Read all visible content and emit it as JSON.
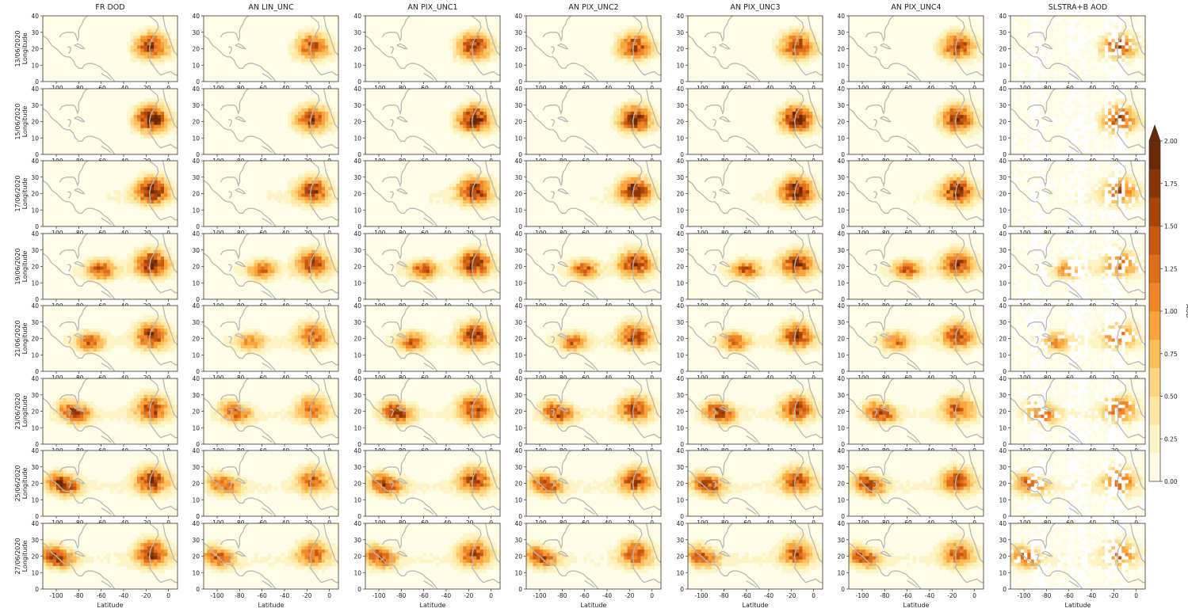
{
  "chart_data": {
    "type": "heatmap",
    "title": "",
    "columns": [
      "FR DOD",
      "AN LIN_UNC",
      "AN PIX_UNC1",
      "AN PIX_UNC2",
      "AN PIX_UNC3",
      "AN PIX_UNC4",
      "SLSTRA+B AOD"
    ],
    "rows": [
      "13/06/2020",
      "15/06/2020",
      "17/06/2020",
      "19/06/2020",
      "21/06/2020",
      "23/06/2020",
      "25/06/2020",
      "27/06/2020"
    ],
    "xlabel": "Latitude",
    "ylabel": "Longitude",
    "xlim": [
      -112,
      8
    ],
    "ylim": [
      0,
      40
    ],
    "x_ticks": [
      -100,
      -80,
      -60,
      -40,
      -20,
      0
    ],
    "y_ticks": [
      0,
      10,
      20,
      30,
      40
    ],
    "grid": false,
    "colorbar": {
      "label": "AOD",
      "range": [
        0,
        2.0
      ],
      "ticks": [
        "0.00",
        "0.25",
        "0.50",
        "0.75",
        "1.00",
        "1.25",
        "1.50",
        "1.75",
        "2.00"
      ],
      "levels": [
        "#fffde6",
        "#fff4c6",
        "#fee8a4",
        "#fed681",
        "#fdbf5c",
        "#fba43c",
        "#f0882a",
        "#de6e1c",
        "#c85810",
        "#a8460a",
        "#893708",
        "#6a2806"
      ],
      "extend": "max",
      "placement": "right"
    },
    "plume_strength": {
      "FR DOD": [
        1.55,
        1.85,
        1.85,
        1.7,
        1.55,
        1.45,
        1.6,
        1.6
      ],
      "AN LIN_UNC": [
        1.3,
        1.45,
        1.55,
        1.45,
        1.2,
        1.15,
        1.2,
        1.2
      ],
      "AN PIX_UNC1": [
        1.55,
        1.75,
        1.75,
        1.65,
        1.55,
        1.45,
        1.45,
        1.35
      ],
      "AN PIX_UNC2": [
        1.45,
        1.7,
        1.7,
        1.6,
        1.45,
        1.4,
        1.4,
        1.3
      ],
      "AN PIX_UNC3": [
        1.5,
        1.75,
        1.8,
        1.6,
        1.45,
        1.4,
        1.4,
        1.3
      ],
      "AN PIX_UNC4": [
        1.4,
        1.6,
        1.65,
        1.5,
        1.35,
        1.3,
        1.35,
        1.25
      ],
      "SLSTRA+B AOD": [
        1.3,
        1.4,
        1.4,
        1.2,
        1.15,
        1.15,
        1.2,
        1.1
      ]
    },
    "plume_front_longitude": [
      -25,
      -25,
      -45,
      -75,
      -85,
      -95,
      -105,
      -110
    ]
  }
}
